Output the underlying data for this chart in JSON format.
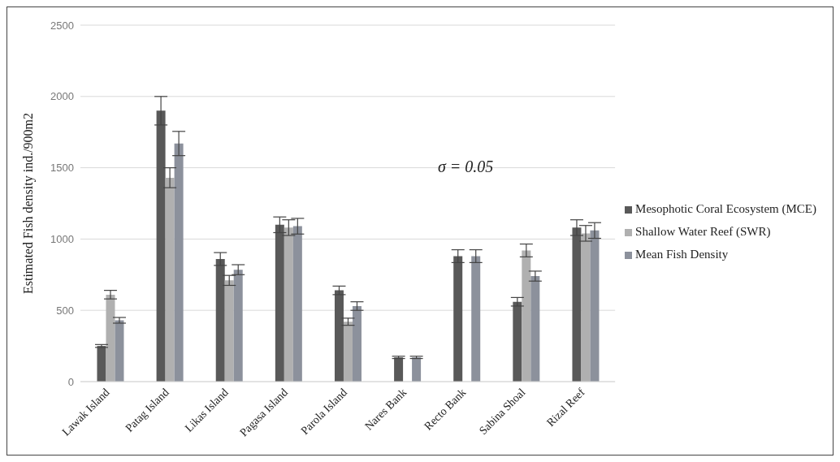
{
  "chart_data": {
    "type": "bar",
    "ylabel": "Estimated Fish density ind./900m2",
    "categories": [
      "Lawak Island",
      "Patag Island",
      "Likas Island",
      "Pagasa Island",
      "Parola Island",
      "Nares Bank",
      "Recto Bank",
      "Sabina Shoal",
      "Rizal Reef"
    ],
    "series": [
      {
        "name": "Mesophotic Coral Ecosystem (MCE)",
        "color": "#595959",
        "values": [
          250,
          1900,
          860,
          1100,
          640,
          170,
          880,
          560,
          1080
        ],
        "errors": [
          10,
          100,
          45,
          55,
          30,
          8,
          45,
          30,
          55
        ]
      },
      {
        "name": "Shallow Water Reef (SWR)",
        "color": "#b0b0b0",
        "values": [
          610,
          1430,
          710,
          1080,
          420,
          null,
          null,
          920,
          1040
        ],
        "errors": [
          30,
          70,
          35,
          55,
          25,
          null,
          null,
          45,
          55
        ]
      },
      {
        "name": "Mean Fish Density",
        "color": "#8c919c",
        "values": [
          430,
          1670,
          785,
          1090,
          530,
          170,
          880,
          740,
          1060
        ],
        "errors": [
          20,
          85,
          35,
          55,
          30,
          8,
          45,
          35,
          55
        ]
      }
    ],
    "ylim": [
      0,
      2500
    ],
    "yticks": [
      0,
      500,
      1000,
      1500,
      2000,
      2500
    ],
    "grid": "y",
    "legend": "right",
    "annotations": [
      "σ = 0.05"
    ]
  }
}
